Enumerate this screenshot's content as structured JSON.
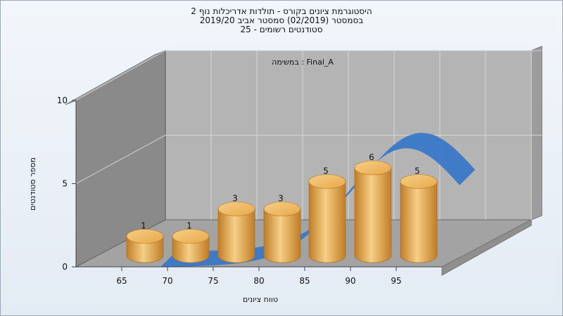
{
  "chart_data": {
    "type": "bar",
    "title_lines": [
      "היסטוגרמת ציונים בקורס - תולדות אדריכלות נוף 2",
      "בסמסטר  (02/2019)  סמסטר אביב 2019/20",
      "סטודנטים רשומים - 25"
    ],
    "annotation": "במשימה : Final_A",
    "xlabel": "טווח ציונים",
    "ylabel": "מספר סטודנטים",
    "categories": [
      "65",
      "70",
      "75",
      "80",
      "85",
      "90",
      "95"
    ],
    "values": [
      1,
      1,
      3,
      3,
      5,
      6,
      5
    ],
    "data_labels": [
      "1",
      "1",
      "3",
      "3",
      "5",
      "6",
      "5"
    ],
    "y_ticks": [
      "0",
      "5",
      "10"
    ],
    "ylim": [
      0,
      10
    ],
    "grid": true,
    "colors": {
      "bar": "#e8a84c",
      "bar_light": "#f6cf86",
      "bar_dark": "#c07d25",
      "curve": "#3a78c8",
      "back_wall": "#b4b4b4",
      "side_wall": "#8a8a8a",
      "floor": "#a3a3a3"
    }
  }
}
